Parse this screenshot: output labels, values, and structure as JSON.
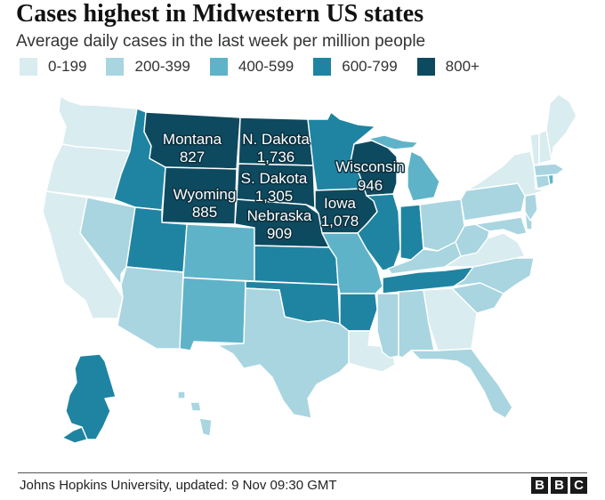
{
  "title": "Cases highest in Midwestern US states",
  "subtitle": "Average daily cases in the last week per million people",
  "legend": [
    {
      "label": "0-199",
      "color": "#d9ecef"
    },
    {
      "label": "200-399",
      "color": "#a8d5e0"
    },
    {
      "label": "400-599",
      "color": "#5fb3c8"
    },
    {
      "label": "600-799",
      "color": "#1f84a2"
    },
    {
      "label": "800+",
      "color": "#0e4a5f"
    }
  ],
  "labels": {
    "montana": {
      "name": "Montana",
      "value": "827"
    },
    "n_dakota": {
      "name": "N. Dakota",
      "value": "1,736"
    },
    "s_dakota": {
      "name": "S. Dakota",
      "value": "1,305"
    },
    "wyoming": {
      "name": "Wyoming",
      "value": "885"
    },
    "nebraska": {
      "name": "Nebraska",
      "value": "909"
    },
    "wisconsin": {
      "name": "Wisconsin",
      "value": "946"
    },
    "iowa": {
      "name": "Iowa",
      "value": "1,078"
    }
  },
  "source": "Johns Hopkins University, updated: 9 Nov 09:30 GMT",
  "logo": [
    "B",
    "B",
    "C"
  ]
}
